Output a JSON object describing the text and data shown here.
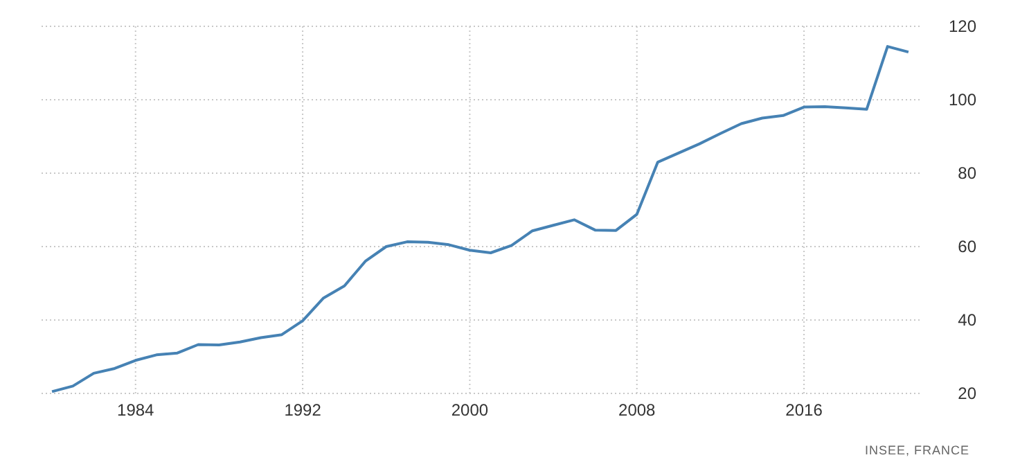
{
  "chart_data": {
    "type": "line",
    "x": [
      1980,
      1981,
      1982,
      1983,
      1984,
      1985,
      1986,
      1987,
      1988,
      1989,
      1990,
      1991,
      1992,
      1993,
      1994,
      1995,
      1996,
      1997,
      1998,
      1999,
      2000,
      2001,
      2002,
      2003,
      2004,
      2005,
      2006,
      2007,
      2008,
      2009,
      2010,
      2011,
      2012,
      2013,
      2014,
      2015,
      2016,
      2017,
      2018,
      2019,
      2020,
      2021
    ],
    "series": [
      {
        "color": "#4682b4",
        "values": [
          20.5,
          22,
          25.5,
          26.8,
          29,
          30.5,
          31,
          33.3,
          33.2,
          34,
          35.2,
          36,
          39.8,
          46,
          49.3,
          56,
          60,
          61.3,
          61.2,
          60.5,
          59,
          58.3,
          60.3,
          64.3,
          65.8,
          67.3,
          64.5,
          64.4,
          68.8,
          83,
          85.5,
          88,
          90.8,
          93.5,
          95,
          95.7,
          98,
          98.1,
          97.8,
          97.4,
          114.5,
          113
        ]
      }
    ],
    "xlim": [
      1979.5,
      2021.6
    ],
    "xticks": [
      1984,
      1992,
      2000,
      2008,
      2016
    ],
    "ylim": [
      20,
      120
    ],
    "yticks": [
      20,
      40,
      60,
      80,
      100,
      120
    ],
    "grid": true,
    "line_style": "solid",
    "marker": "none",
    "annotations": [
      "INSEE, FRANCE"
    ]
  }
}
